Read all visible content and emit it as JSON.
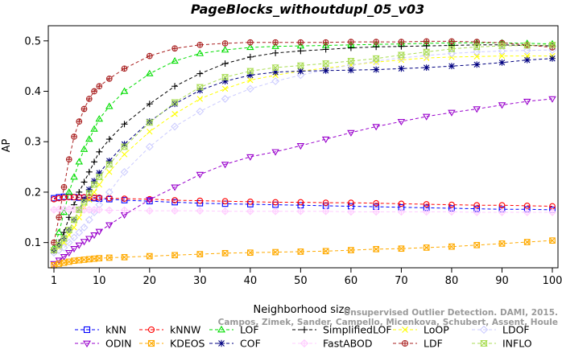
{
  "chart_data": {
    "type": "line",
    "title": "PageBlocks_withoutdupl_05_v03",
    "xlabel": "Neighborhood size",
    "ylabel": "AP",
    "xlim": [
      1,
      100
    ],
    "ylim": [
      0.05,
      0.53
    ],
    "x_ticks": [
      1,
      10,
      20,
      30,
      40,
      50,
      60,
      70,
      80,
      90,
      100
    ],
    "y_ticks": [
      0.1,
      0.2,
      0.3,
      0.4,
      0.5
    ],
    "y_tick_labels": [
      "0.1",
      "0.2",
      "0.3",
      "0.4",
      "0.5"
    ],
    "grid": false,
    "legend_position": "bottom",
    "credit_line1": "Unsupervised Outlier Detection. DAMI, 2015.",
    "credit_line2": "Campos, Zimek, Sander, Campello, Micenkova, Schubert, Assent, Houle",
    "x": [
      1,
      2,
      3,
      4,
      5,
      6,
      7,
      8,
      9,
      10,
      12,
      15,
      20,
      25,
      30,
      35,
      40,
      45,
      50,
      55,
      60,
      65,
      70,
      75,
      80,
      85,
      90,
      95,
      100
    ],
    "series": [
      {
        "name": "kNN",
        "color": "#0000ff",
        "marker": "square",
        "values": [
          0.188,
          0.19,
          0.191,
          0.191,
          0.19,
          0.189,
          0.189,
          0.188,
          0.188,
          0.187,
          0.186,
          0.184,
          0.182,
          0.18,
          0.178,
          0.177,
          0.176,
          0.175,
          0.174,
          0.173,
          0.172,
          0.171,
          0.17,
          0.169,
          0.168,
          0.167,
          0.166,
          0.166,
          0.165
        ]
      },
      {
        "name": "kNNW",
        "color": "#ff0000",
        "marker": "circle",
        "values": [
          0.186,
          0.188,
          0.189,
          0.19,
          0.19,
          0.19,
          0.19,
          0.19,
          0.189,
          0.189,
          0.188,
          0.187,
          0.186,
          0.184,
          0.183,
          0.182,
          0.181,
          0.18,
          0.18,
          0.179,
          0.179,
          0.178,
          0.177,
          0.176,
          0.175,
          0.174,
          0.174,
          0.173,
          0.172
        ]
      },
      {
        "name": "LOF",
        "color": "#00dd00",
        "marker": "triangle",
        "values": [
          0.09,
          0.12,
          0.16,
          0.2,
          0.23,
          0.26,
          0.285,
          0.305,
          0.325,
          0.345,
          0.37,
          0.4,
          0.435,
          0.46,
          0.475,
          0.482,
          0.487,
          0.489,
          0.49,
          0.491,
          0.492,
          0.493,
          0.494,
          0.495,
          0.496,
          0.496,
          0.496,
          0.495,
          0.494
        ]
      },
      {
        "name": "SimplifiedLOF",
        "color": "#000000",
        "marker": "plus",
        "values": [
          0.085,
          0.1,
          0.12,
          0.15,
          0.175,
          0.2,
          0.22,
          0.24,
          0.26,
          0.28,
          0.305,
          0.335,
          0.375,
          0.41,
          0.435,
          0.455,
          0.468,
          0.476,
          0.48,
          0.483,
          0.486,
          0.488,
          0.489,
          0.49,
          0.491,
          0.492,
          0.492,
          0.491,
          0.49
        ]
      },
      {
        "name": "LoOP",
        "color": "#ffff00",
        "marker": "x",
        "values": [
          0.083,
          0.09,
          0.1,
          0.115,
          0.13,
          0.15,
          0.17,
          0.185,
          0.2,
          0.215,
          0.24,
          0.275,
          0.32,
          0.355,
          0.385,
          0.405,
          0.422,
          0.432,
          0.44,
          0.446,
          0.452,
          0.458,
          0.462,
          0.466,
          0.468,
          0.469,
          0.47,
          0.47,
          0.47
        ]
      },
      {
        "name": "LDOF",
        "color": "#ccccff",
        "marker": "diamond",
        "values": [
          0.08,
          0.085,
          0.09,
          0.1,
          0.11,
          0.12,
          0.13,
          0.145,
          0.16,
          0.175,
          0.2,
          0.24,
          0.29,
          0.33,
          0.36,
          0.385,
          0.405,
          0.42,
          0.432,
          0.443,
          0.452,
          0.46,
          0.466,
          0.471,
          0.475,
          0.478,
          0.48,
          0.481,
          0.482
        ]
      },
      {
        "name": "ODIN",
        "color": "#9900cc",
        "marker": "invtriangle",
        "values": [
          0.058,
          0.065,
          0.072,
          0.08,
          0.088,
          0.095,
          0.102,
          0.108,
          0.115,
          0.122,
          0.135,
          0.155,
          0.185,
          0.21,
          0.235,
          0.255,
          0.27,
          0.28,
          0.292,
          0.305,
          0.318,
          0.33,
          0.34,
          0.35,
          0.358,
          0.365,
          0.373,
          0.38,
          0.385
        ]
      },
      {
        "name": "KDEOS",
        "color": "#ffaa00",
        "marker": "squarex",
        "values": [
          0.055,
          0.058,
          0.06,
          0.062,
          0.064,
          0.065,
          0.066,
          0.067,
          0.068,
          0.069,
          0.07,
          0.071,
          0.073,
          0.075,
          0.077,
          0.079,
          0.08,
          0.081,
          0.082,
          0.083,
          0.085,
          0.087,
          0.088,
          0.09,
          0.092,
          0.095,
          0.098,
          0.101,
          0.104
        ]
      },
      {
        "name": "COF",
        "color": "#000080",
        "marker": "asterisk",
        "values": [
          0.084,
          0.095,
          0.108,
          0.125,
          0.145,
          0.165,
          0.185,
          0.205,
          0.222,
          0.238,
          0.262,
          0.295,
          0.34,
          0.375,
          0.402,
          0.42,
          0.432,
          0.438,
          0.44,
          0.441,
          0.442,
          0.443,
          0.445,
          0.447,
          0.45,
          0.453,
          0.457,
          0.462,
          0.465
        ]
      },
      {
        "name": "FastABOD",
        "color": "#ffccff",
        "marker": "diamondplus",
        "values": [
          0.165,
          0.166,
          0.166,
          0.166,
          0.166,
          0.166,
          0.165,
          0.165,
          0.165,
          0.165,
          0.164,
          0.164,
          0.163,
          0.163,
          0.163,
          0.162,
          0.162,
          0.162,
          0.162,
          0.162,
          0.161,
          0.161,
          0.161,
          0.161,
          0.161,
          0.16,
          0.16,
          0.16,
          0.16
        ]
      },
      {
        "name": "LDF",
        "color": "#aa2222",
        "marker": "circleplus",
        "values": [
          0.1,
          0.15,
          0.21,
          0.265,
          0.31,
          0.34,
          0.365,
          0.385,
          0.4,
          0.41,
          0.425,
          0.445,
          0.47,
          0.485,
          0.492,
          0.495,
          0.497,
          0.497,
          0.497,
          0.497,
          0.498,
          0.498,
          0.498,
          0.499,
          0.499,
          0.498,
          0.496,
          0.492,
          0.487
        ]
      },
      {
        "name": "INFLO",
        "color": "#aadd55",
        "marker": "hourglass",
        "values": [
          0.085,
          0.095,
          0.108,
          0.125,
          0.145,
          0.165,
          0.18,
          0.198,
          0.215,
          0.23,
          0.255,
          0.29,
          0.338,
          0.378,
          0.408,
          0.428,
          0.44,
          0.447,
          0.451,
          0.455,
          0.46,
          0.465,
          0.472,
          0.478,
          0.484,
          0.488,
          0.49,
          0.491,
          0.492
        ]
      }
    ]
  }
}
